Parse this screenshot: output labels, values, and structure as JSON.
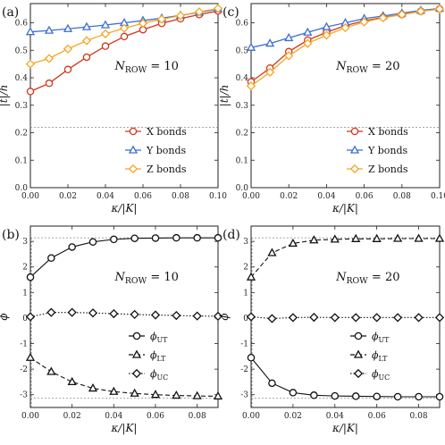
{
  "colors": {
    "x_bonds": "#d4351c",
    "y_bonds": "#3c6fd1",
    "z_bonds": "#f5a623",
    "axis": "#222222",
    "reference_line": "#888888",
    "phase_line": "#111111"
  },
  "chart_data": [
    {
      "panel": "(a)",
      "type": "line",
      "annotation": "N_ROW = 10",
      "annotation_main": "N",
      "annotation_sub": "ROW",
      "annotation_value": " = 10",
      "xlabel": "κ/|K|",
      "ylabel": "|t|/h",
      "xlim": [
        0,
        0.1
      ],
      "ylim": [
        0,
        0.67
      ],
      "xticks": [
        "0.00",
        "0.02",
        "0.04",
        "0.06",
        "0.08",
        "0.10"
      ],
      "yticks": [
        "0.0",
        "0.1",
        "0.2",
        "0.3",
        "0.4",
        "0.5",
        "0.6"
      ],
      "reference_y": 0.22,
      "x": [
        0,
        0.01,
        0.02,
        0.03,
        0.04,
        0.05,
        0.06,
        0.07,
        0.08,
        0.09,
        0.1
      ],
      "series": [
        {
          "name": "X bonds",
          "marker": "circle",
          "values": [
            0.35,
            0.38,
            0.43,
            0.475,
            0.515,
            0.55,
            0.575,
            0.598,
            0.615,
            0.63,
            0.643
          ]
        },
        {
          "name": "Y bonds",
          "marker": "triangle",
          "values": [
            0.567,
            0.572,
            0.578,
            0.585,
            0.592,
            0.6,
            0.608,
            0.617,
            0.627,
            0.638,
            0.65
          ]
        },
        {
          "name": "Z bonds",
          "marker": "diamond",
          "values": [
            0.45,
            0.47,
            0.505,
            0.535,
            0.56,
            0.58,
            0.598,
            0.613,
            0.626,
            0.64,
            0.652
          ]
        }
      ],
      "legend": "bottom-right",
      "grid": false
    },
    {
      "panel": "(c)",
      "type": "line",
      "annotation": "N_ROW = 20",
      "annotation_main": "N",
      "annotation_sub": "ROW",
      "annotation_value": " = 20",
      "xlabel": "κ/|K|",
      "ylabel": "|t|/h",
      "xlim": [
        0,
        0.1
      ],
      "ylim": [
        0,
        0.67
      ],
      "xticks": [
        "0.00",
        "0.02",
        "0.04",
        "0.06",
        "0.08",
        "0.10"
      ],
      "yticks": [
        "0.0",
        "0.1",
        "0.2",
        "0.3",
        "0.4",
        "0.5",
        "0.6"
      ],
      "reference_y": 0.22,
      "x": [
        0,
        0.01,
        0.02,
        0.03,
        0.04,
        0.05,
        0.06,
        0.07,
        0.08,
        0.09,
        0.1
      ],
      "series": [
        {
          "name": "X bonds",
          "marker": "circle",
          "values": [
            0.385,
            0.435,
            0.495,
            0.537,
            0.565,
            0.59,
            0.607,
            0.62,
            0.63,
            0.642,
            0.65
          ]
        },
        {
          "name": "Y bonds",
          "marker": "triangle",
          "values": [
            0.51,
            0.525,
            0.545,
            0.565,
            0.585,
            0.6,
            0.615,
            0.625,
            0.635,
            0.645,
            0.652
          ]
        },
        {
          "name": "Z bonds",
          "marker": "diamond",
          "values": [
            0.37,
            0.42,
            0.48,
            0.525,
            0.555,
            0.582,
            0.603,
            0.618,
            0.63,
            0.642,
            0.65
          ]
        }
      ],
      "legend": "bottom-right",
      "grid": false
    },
    {
      "panel": "(b)",
      "type": "line",
      "annotation": "N_ROW = 10",
      "annotation_main": "N",
      "annotation_sub": "ROW",
      "annotation_value": " = 10",
      "xlabel": "κ/|K|",
      "ylabel": "ϕ",
      "xlim": [
        0,
        0.09
      ],
      "ylim": [
        -3.5,
        3.6
      ],
      "xticks": [
        "0.00",
        "0.02",
        "0.04",
        "0.06",
        "0.08"
      ],
      "yticks": [
        "-3",
        "-2",
        "-1",
        "0",
        "1",
        "2",
        "3"
      ],
      "reference_y": [
        3.14159,
        -3.14159
      ],
      "x": [
        0,
        0.01,
        0.02,
        0.03,
        0.04,
        0.05,
        0.06,
        0.07,
        0.08,
        0.09
      ],
      "series": [
        {
          "name": "ϕUT",
          "name_main": "ϕ",
          "name_sub": "UT",
          "marker": "circle",
          "dash": "solid",
          "values": [
            1.6,
            2.35,
            2.78,
            2.98,
            3.08,
            3.12,
            3.13,
            3.14,
            3.14,
            3.14
          ]
        },
        {
          "name": "ϕLT",
          "name_main": "ϕ",
          "name_sub": "LT",
          "marker": "triangle",
          "dash": "dashed",
          "values": [
            -1.55,
            -2.1,
            -2.5,
            -2.75,
            -2.88,
            -2.95,
            -3.0,
            -3.03,
            -3.05,
            -3.06
          ]
        },
        {
          "name": "ϕUC",
          "name_main": "ϕ",
          "name_sub": "UC",
          "marker": "diamond",
          "dash": "dotted",
          "values": [
            0.05,
            0.22,
            0.22,
            0.2,
            0.17,
            0.14,
            0.12,
            0.1,
            0.08,
            0.07
          ]
        }
      ],
      "legend": "bottom-right",
      "grid": false
    },
    {
      "panel": "(d)",
      "type": "line",
      "annotation": "N_ROW = 20",
      "annotation_main": "N",
      "annotation_sub": "ROW",
      "annotation_value": " = 20",
      "xlabel": "κ/|K|",
      "ylabel": "ϕ",
      "xlim": [
        0,
        0.09
      ],
      "ylim": [
        -3.5,
        3.6
      ],
      "xticks": [
        "0.00",
        "0.02",
        "0.04",
        "0.06",
        "0.08"
      ],
      "yticks": [
        "-3",
        "-2",
        "-1",
        "0",
        "1",
        "2",
        "3"
      ],
      "reference_y": [
        3.14159,
        -3.14159
      ],
      "x": [
        0,
        0.01,
        0.02,
        0.03,
        0.04,
        0.05,
        0.06,
        0.07,
        0.08,
        0.09
      ],
      "series": [
        {
          "name": "ϕUT",
          "name_main": "ϕ",
          "name_sub": "UT",
          "marker": "circle",
          "dash": "solid",
          "values": [
            -1.55,
            -2.55,
            -2.92,
            -3.02,
            -3.05,
            -3.06,
            -3.07,
            -3.08,
            -3.08,
            -3.08
          ]
        },
        {
          "name": "ϕLT",
          "name_main": "ϕ",
          "name_sub": "LT",
          "marker": "triangle",
          "dash": "dashed",
          "values": [
            1.6,
            2.55,
            2.92,
            3.05,
            3.08,
            3.1,
            3.1,
            3.11,
            3.11,
            3.11
          ]
        },
        {
          "name": "ϕUC",
          "name_main": "ϕ",
          "name_sub": "UC",
          "marker": "diamond",
          "dash": "dotted",
          "values": [
            0.05,
            -0.02,
            0.02,
            0.03,
            0.02,
            0.02,
            0.02,
            0.02,
            0.02,
            0.02
          ]
        }
      ],
      "legend": "bottom-right",
      "grid": false
    }
  ]
}
